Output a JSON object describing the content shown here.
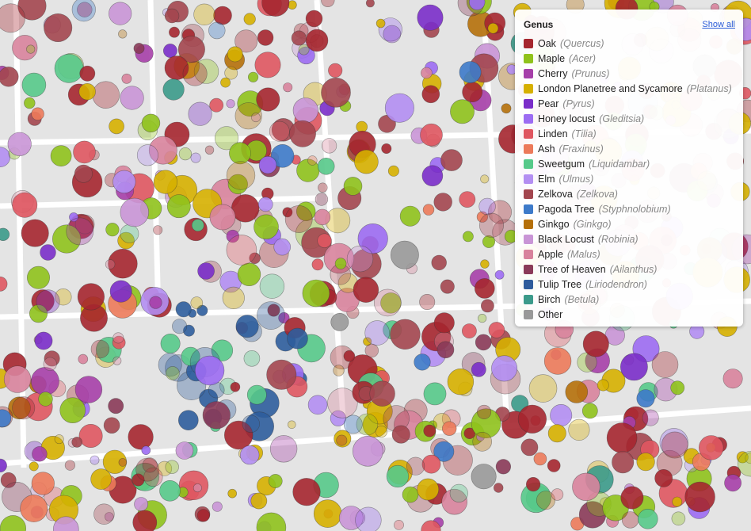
{
  "legend": {
    "title": "Genus",
    "show_all": "Show all",
    "items": [
      {
        "name": "Oak",
        "latin": "(Quercus)",
        "color": "#a5262f"
      },
      {
        "name": "Maple",
        "latin": "(Acer)",
        "color": "#8fc21c"
      },
      {
        "name": "Cherry",
        "latin": "(Prunus)",
        "color": "#a63fa9"
      },
      {
        "name": "London Planetree and Sycamore",
        "latin": "(Platanus)",
        "color": "#d6b000"
      },
      {
        "name": "Pear",
        "latin": "(Pyrus)",
        "color": "#7a2dc9"
      },
      {
        "name": "Honey locust",
        "latin": "(Gleditsia)",
        "color": "#9c6cf2"
      },
      {
        "name": "Linden",
        "latin": "(Tilia)",
        "color": "#df5660"
      },
      {
        "name": "Ash",
        "latin": "(Fraxinus)",
        "color": "#ec7a5a"
      },
      {
        "name": "Sweetgum",
        "latin": "(Liquidambar)",
        "color": "#56c98a"
      },
      {
        "name": "Elm",
        "latin": "(Ulmus)",
        "color": "#b38ef2"
      },
      {
        "name": "Zelkova",
        "latin": "(Zelkova)",
        "color": "#a3464f"
      },
      {
        "name": "Pagoda Tree",
        "latin": "(Styphnolobium)",
        "color": "#3d7ac9"
      },
      {
        "name": "Ginkgo",
        "latin": "(Ginkgo)",
        "color": "#b5700a"
      },
      {
        "name": "Black Locust",
        "latin": "(Robinia)",
        "color": "#c995d6"
      },
      {
        "name": "Apple",
        "latin": "(Malus)",
        "color": "#d8839c"
      },
      {
        "name": "Tree of Heaven",
        "latin": "(Ailanthus)",
        "color": "#8a3a58"
      },
      {
        "name": "Tulip Tree",
        "latin": "(Liriodendron)",
        "color": "#2e5d9c"
      },
      {
        "name": "Birch",
        "latin": "(Betula)",
        "color": "#3b9a8a"
      },
      {
        "name": "Other",
        "color": "#999999"
      }
    ]
  }
}
